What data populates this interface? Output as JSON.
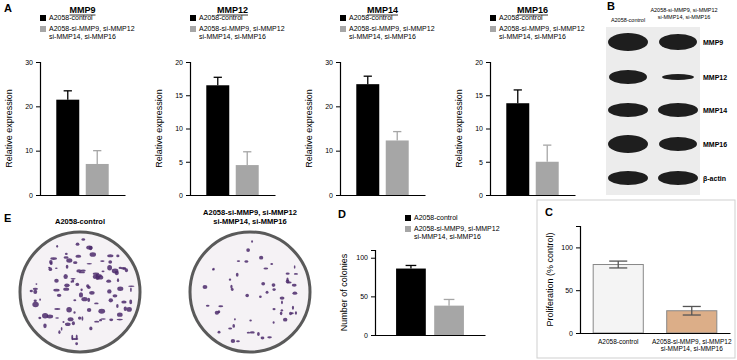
{
  "panel_letters": [
    "A",
    "B",
    "C",
    "D",
    "E"
  ],
  "chart_data": [
    {
      "type": "bar",
      "title": "MMP9",
      "ylabel": "Relative expression",
      "categories": [
        null
      ],
      "series": [
        {
          "name": "A2058-control",
          "color": "#000000",
          "values": [
            21.5
          ],
          "errors": [
            2.0
          ]
        },
        {
          "name": "A2058-si-MMP9, si-MMP12 si-MMP14, si-MMP16",
          "color": "#a6a6a6",
          "values": [
            7.0
          ],
          "errors": [
            3.0
          ]
        }
      ],
      "ylim": [
        0,
        30
      ],
      "yticks": [
        0,
        10,
        20,
        30
      ],
      "legend": "top",
      "tick_labels": "y"
    },
    {
      "type": "bar",
      "title": "MMP12",
      "ylabel": "Relative expression",
      "categories": [
        null
      ],
      "series": [
        {
          "name": "A2058-control",
          "color": "#000000",
          "values": [
            16.5
          ],
          "errors": [
            1.2
          ]
        },
        {
          "name": "A2058-si-MMP9, si-MMP12 si-MMP14, si-MMP16",
          "color": "#a6a6a6",
          "values": [
            4.5
          ],
          "errors": [
            2.0
          ]
        }
      ],
      "ylim": [
        0,
        20
      ],
      "yticks": [
        0,
        5,
        10,
        15,
        20
      ],
      "legend": "top",
      "tick_labels": "y"
    },
    {
      "type": "bar",
      "title": "MMP14",
      "ylabel": "Relative expression",
      "categories": [
        null
      ],
      "series": [
        {
          "name": "A2058-control",
          "color": "#000000",
          "values": [
            25.0
          ],
          "errors": [
            1.8
          ]
        },
        {
          "name": "A2058-si-MMP9, si-MMP12 si-MMP14, si-MMP16",
          "color": "#a6a6a6",
          "values": [
            12.3
          ],
          "errors": [
            2.0
          ]
        }
      ],
      "ylim": [
        0,
        30
      ],
      "yticks": [
        0,
        10,
        20,
        30
      ],
      "legend": "top",
      "tick_labels": "y"
    },
    {
      "type": "bar",
      "title": "MMP16",
      "ylabel": "Relative expression",
      "categories": [
        null
      ],
      "series": [
        {
          "name": "A2058-control",
          "color": "#000000",
          "values": [
            13.8
          ],
          "errors": [
            2.0
          ]
        },
        {
          "name": "A2058-si-MMP9, si-MMP12 si-MMP14, si-MMP16",
          "color": "#a6a6a6",
          "values": [
            5.0
          ],
          "errors": [
            2.5
          ]
        }
      ],
      "ylim": [
        0,
        20
      ],
      "yticks": [
        0,
        5,
        10,
        15,
        20
      ],
      "legend": "top",
      "tick_labels": "y"
    },
    {
      "type": "bar",
      "ylabel": "Number of colonies",
      "categories": [
        null
      ],
      "series": [
        {
          "name": "A2058-control",
          "color": "#000000",
          "values": [
            86
          ],
          "errors": [
            4
          ]
        },
        {
          "name": "A2058-si-MMP9, si-MMP12 si-MMP14, si-MMP16",
          "color": "#a6a6a6",
          "values": [
            38
          ],
          "errors": [
            8
          ]
        }
      ],
      "ylim": [
        0,
        110
      ],
      "yticks": [
        0,
        50,
        100
      ],
      "legend": "top-right",
      "tick_labels": "y"
    },
    {
      "type": "bar",
      "ylabel": "Proliferation (% control)",
      "categories": [
        "A2058-control",
        "A2058-si-MMP9, si-MMP12 si-MMP14, si-MMP16"
      ],
      "values": [
        80,
        26
      ],
      "errors": [
        4,
        5
      ],
      "colors": [
        "#f4f4f4",
        "#dcae88"
      ],
      "ylim": [
        0,
        125
      ],
      "yticks": [
        0,
        50,
        100
      ],
      "tick_labels": true
    }
  ],
  "blot": {
    "columns": [
      "A2058-control",
      "A2058-si-MMP9, si-MMP12 si-MMP14, si-MMP16"
    ],
    "rows": [
      "MMP9",
      "MMP12",
      "MMP14",
      "MMP16",
      "β-actin"
    ]
  },
  "colonies": {
    "labels": [
      "A2058-control",
      "A2058-si-MMP9, si-MMP12 si-MMP14, si-MMP16"
    ]
  }
}
